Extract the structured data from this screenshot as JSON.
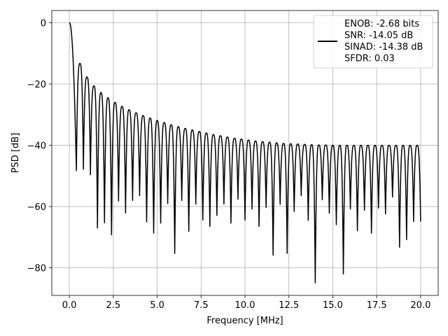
{
  "chart_data": {
    "type": "line",
    "xlabel": "Frequency [MHz]",
    "ylabel": "PSD [dB]",
    "xlim": [
      -1.0,
      21.0
    ],
    "ylim": [
      -89.0,
      4.0
    ],
    "xticks": [
      0.0,
      2.5,
      5.0,
      7.5,
      10.0,
      12.5,
      15.0,
      17.5,
      20.0
    ],
    "xtick_labels": [
      "0.0",
      "2.5",
      "5.0",
      "7.5",
      "10.0",
      "12.5",
      "15.0",
      "17.5",
      "20.0"
    ],
    "yticks": [
      0,
      -20,
      -40,
      -60,
      -80
    ],
    "ytick_labels": [
      "0",
      "−20",
      "−40",
      "−60",
      "−80"
    ],
    "grid": true,
    "legend_position": "top-right",
    "series": [
      {
        "color": "#000000",
        "lobe_spacing_mhz": 0.4,
        "peaks_db": [
          0,
          -13.3,
          -17.7,
          -20.6,
          -22.8,
          -24.5,
          -26.0,
          -27.3,
          -28.4,
          -29.4,
          -30.3,
          -31.1,
          -31.9,
          -32.6,
          -33.3,
          -33.9,
          -34.5,
          -35.0,
          -35.5,
          -36.0,
          -36.5,
          -36.9,
          -37.3,
          -37.7,
          -38.0,
          -38.3,
          -38.6,
          -38.8,
          -39.0,
          -39.2,
          -39.4,
          -39.5,
          -39.6,
          -39.7,
          -39.8,
          -39.9,
          -39.9,
          -40.0,
          -40.0,
          -40.0,
          -40.0,
          -40.0,
          -40.0,
          -40.0,
          -40.0,
          -40.0,
          -40.0,
          -40.0,
          -40.0,
          -40.0
        ],
        "nulls_db": [
          -48.3,
          -47.8,
          -49.6,
          -67.0,
          -65.3,
          -69.2,
          -58.2,
          -62.1,
          -58.0,
          -56.4,
          -65.0,
          -68.7,
          -65.4,
          -59.0,
          -75.3,
          -58.0,
          -68.1,
          -59.2,
          -64.4,
          -66.5,
          -62.9,
          -59.2,
          -65.4,
          -57.6,
          -64.4,
          -60.8,
          -66.5,
          -60.3,
          -75.9,
          -59.3,
          -75.3,
          -61.6,
          -56.4,
          -64.5,
          -84.9,
          -57.8,
          -62.2,
          -65.9,
          -82.0,
          -60.8,
          -67.9,
          -61.2,
          -68.7,
          -60.5,
          -62.4,
          -56.9,
          -73.3,
          -70.8,
          -64.9
        ]
      }
    ],
    "legend": {
      "lines": [
        "ENOB: -2.68 bits",
        "SNR: -14.05 dB",
        "SINAD: -14.38 dB",
        "SFDR: 0.03"
      ]
    }
  }
}
